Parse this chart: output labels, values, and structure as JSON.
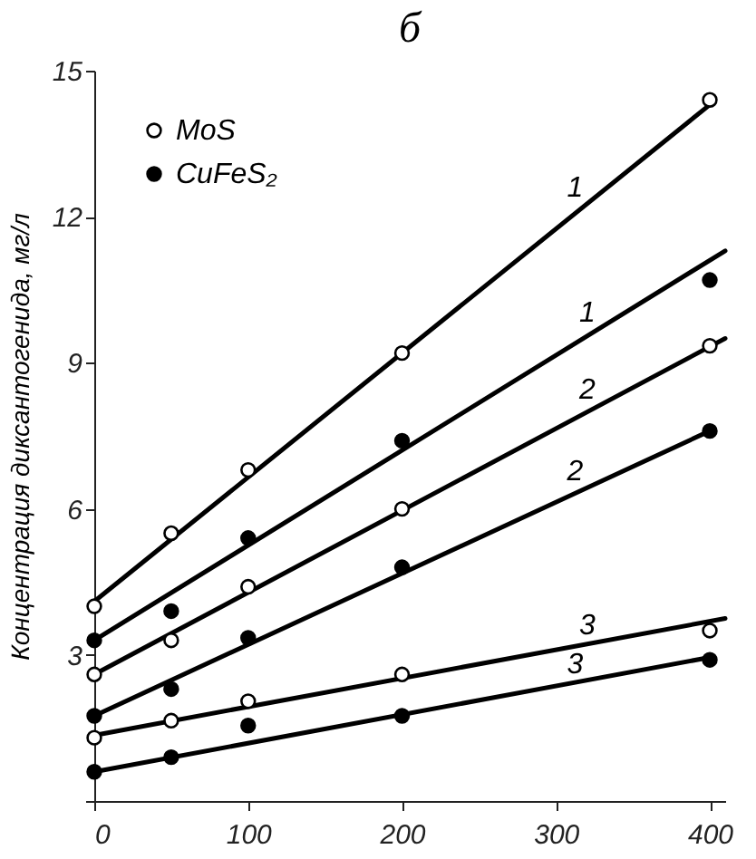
{
  "chart_data": {
    "type": "scatter",
    "title": "б",
    "ylabel": "Концентрация диксантогенида, мг/л",
    "x": [
      0,
      50,
      100,
      200,
      400
    ],
    "xlim": [
      0,
      410
    ],
    "xticks": [
      0,
      100,
      200,
      300,
      400
    ],
    "ylim": [
      0,
      15
    ],
    "yticks": [
      {
        "value": 0,
        "label": null
      },
      3,
      6,
      9,
      12,
      15
    ],
    "grid": false,
    "legend": "top left",
    "series": [
      {
        "name": "MoS",
        "color": "#ffffff",
        "marker": "circle",
        "values": [
          4.0,
          5.5,
          6.8,
          9.2,
          14.4
        ]
      },
      {
        "name": "CuFeS₂",
        "color": "#000000",
        "marker": "circle",
        "values": [
          3.3,
          3.9,
          5.4,
          7.4,
          10.7
        ]
      },
      {
        "color": "#ffffff",
        "marker": "circle",
        "values": [
          2.6,
          3.3,
          4.4,
          6.0,
          9.35
        ]
      },
      {
        "color": "#000000",
        "marker": "circle",
        "values": [
          1.75,
          2.3,
          3.35,
          4.8,
          7.6
        ]
      },
      {
        "color": "#ffffff",
        "marker": "circle",
        "values": [
          1.3,
          1.65,
          2.05,
          2.6,
          3.5
        ]
      },
      {
        "color": "#000000",
        "marker": "circle",
        "values": [
          0.6,
          0.9,
          1.55,
          1.75,
          2.9
        ]
      },
      {
        "type": "line",
        "name": "1",
        "color": "#000000",
        "x": [
          0,
          400
        ],
        "values": [
          4.1,
          14.3
        ]
      },
      {
        "type": "line",
        "name": "1",
        "color": "#000000",
        "x": [
          0,
          410
        ],
        "values": [
          3.3,
          11.3
        ]
      },
      {
        "type": "line",
        "name": "2",
        "color": "#000000",
        "x": [
          0,
          410
        ],
        "values": [
          2.6,
          9.5
        ]
      },
      {
        "type": "line",
        "name": "2",
        "color": "#000000",
        "x": [
          0,
          400
        ],
        "values": [
          1.75,
          7.6
        ]
      },
      {
        "type": "line",
        "name": "3",
        "color": "#000000",
        "x": [
          0,
          410
        ],
        "values": [
          1.35,
          3.75
        ]
      },
      {
        "type": "line",
        "name": "3",
        "color": "#000000",
        "x": [
          0,
          400
        ],
        "values": [
          0.6,
          2.95
        ]
      }
    ]
  }
}
